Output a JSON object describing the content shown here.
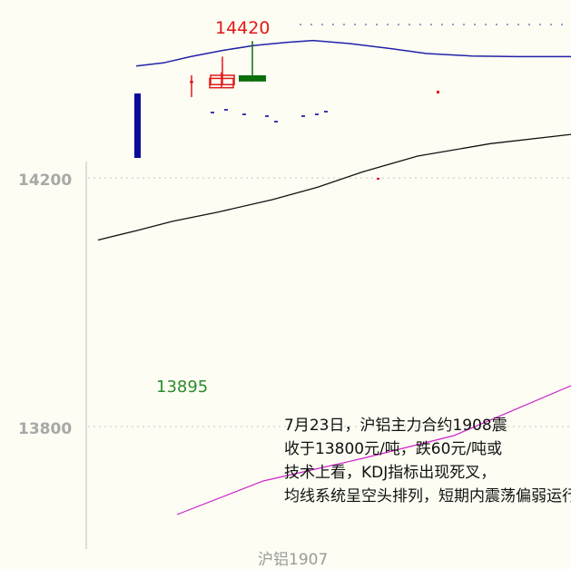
{
  "chart_data": {
    "type": "candlestick",
    "symbol": "沪铝1907",
    "high_label": "14420",
    "low_label": "13895",
    "yticks": [
      "14200",
      "13800"
    ],
    "grid": true,
    "colors": {
      "up": "#e01818",
      "down": "#0a6e0a",
      "ma_top": "#2222aa",
      "ma_mid": "#111111",
      "ma_pink": "#cc22cc",
      "axis_label": "#a8a8a8"
    },
    "candles": [
      {
        "open": 14355,
        "close": 14355,
        "high": 14365,
        "low": 14330
      },
      {
        "open": 14345,
        "close": 14360,
        "high": 14370,
        "low": 14345
      },
      {
        "open": 14350,
        "close": 14365,
        "high": 14395,
        "low": 14350
      },
      {
        "open": 14365,
        "close": 14355,
        "high": 14420,
        "low": 14355
      }
    ],
    "ma_top": [
      14380,
      14385,
      14395,
      14405,
      14413,
      14418,
      14421,
      14416,
      14408,
      14400,
      14396,
      14395,
      14395
    ],
    "ma_mid": [
      14100,
      14115,
      14130,
      14145,
      14165,
      14185,
      14210,
      14235,
      14255,
      14270
    ]
  },
  "annotation": [
    "7月23日，沪铝主力合约1908震",
    "收于13800元/吨，跌60元/吨或",
    "技术上看，KDJ指标出现死叉，",
    "均线系统呈空头排列，短期内震荡偏弱运行为主"
  ]
}
